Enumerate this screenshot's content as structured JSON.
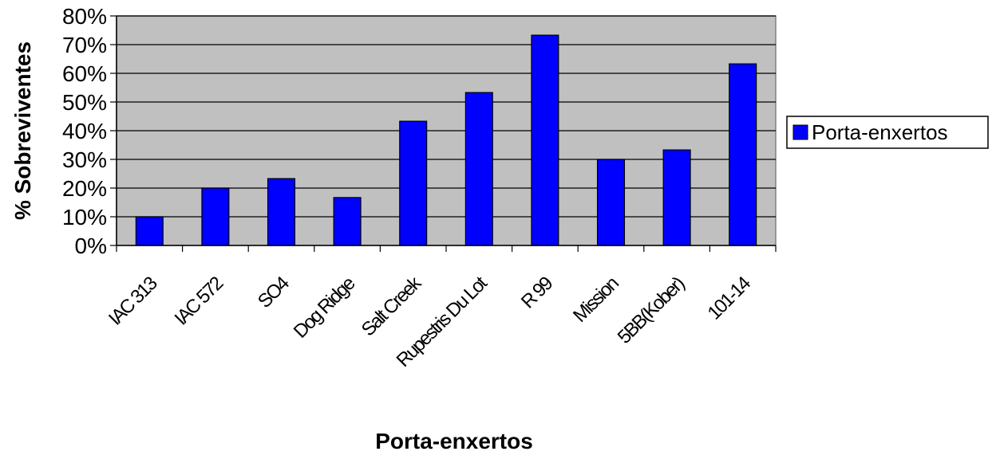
{
  "chart_data": {
    "type": "bar",
    "xlabel": "Porta-enxertos",
    "ylabel": "% Sobreviventes",
    "categories": [
      "IAC 313",
      "IAC 572",
      "SO4",
      "Dog Ridge",
      "Salt Creek",
      "Rupestris Du Lot",
      "R 99",
      "Mission",
      "5BB(Kober)",
      "101-14"
    ],
    "series": [
      {
        "name": "Porta-enxertos",
        "values": [
          10,
          20,
          23.3,
          16.7,
          43.3,
          53.3,
          73.3,
          30,
          33.3,
          63.3
        ]
      }
    ],
    "ylim": [
      0,
      80
    ],
    "yticks": [
      "0%",
      "10%",
      "20%",
      "30%",
      "40%",
      "50%",
      "60%",
      "70%",
      "80%"
    ],
    "grid": true,
    "legend_position": "right",
    "colors": {
      "bar": "#0000ff",
      "plot_background": "#c0c0c0",
      "bar_edge": "#000000"
    }
  }
}
